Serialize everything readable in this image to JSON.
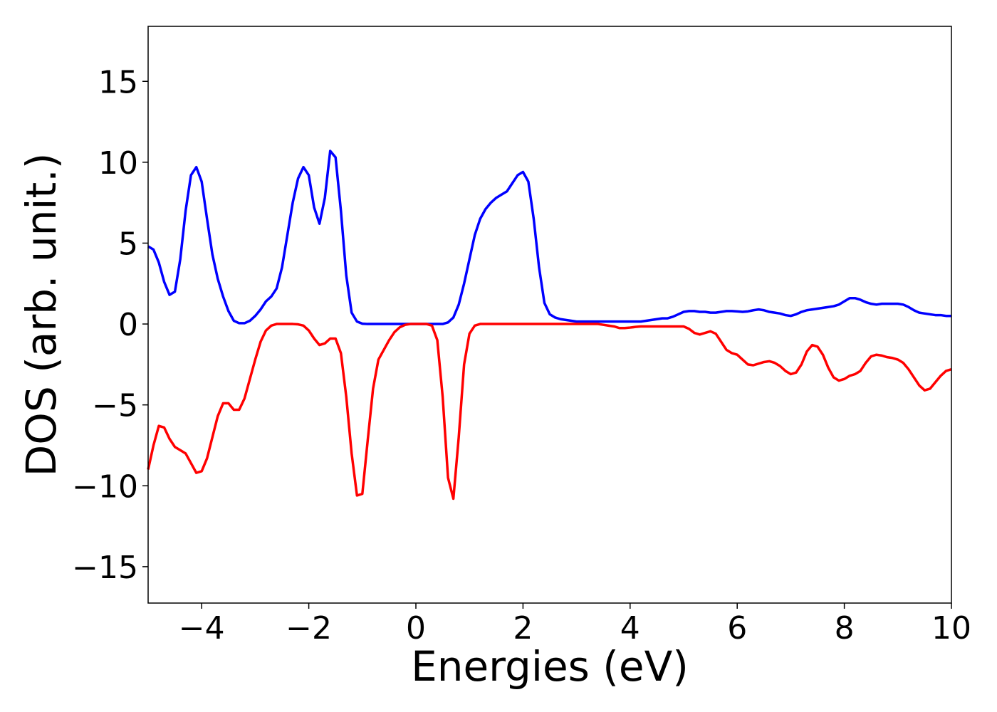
{
  "chart_data": {
    "type": "line",
    "xlabel": "Energies (eV)",
    "ylabel": "DOS (arb. unit.)",
    "xlim": [
      -5,
      10
    ],
    "ylim": [
      -17.25,
      18.4
    ],
    "xticks": [
      {
        "value": -4,
        "label": "−4"
      },
      {
        "value": -2,
        "label": "−2"
      },
      0,
      2,
      4,
      6,
      8,
      10
    ],
    "yticks": [
      {
        "value": -15,
        "label": "−15"
      },
      {
        "value": -10,
        "label": "−10"
      },
      {
        "value": -5,
        "label": "−5"
      },
      0,
      5,
      10,
      15
    ],
    "x": [
      -5.0,
      -4.9,
      -4.8,
      -4.7,
      -4.6,
      -4.5,
      -4.4,
      -4.3,
      -4.2,
      -4.1,
      -4.0,
      -3.9,
      -3.8,
      -3.7,
      -3.6,
      -3.5,
      -3.4,
      -3.3,
      -3.2,
      -3.1,
      -3.0,
      -2.9,
      -2.8,
      -2.7,
      -2.6,
      -2.5,
      -2.4,
      -2.3,
      -2.2,
      -2.1,
      -2.0,
      -1.9,
      -1.8,
      -1.7,
      -1.6,
      -1.5,
      -1.4,
      -1.3,
      -1.2,
      -1.1,
      -1.0,
      -0.9,
      -0.8,
      -0.7,
      -0.6,
      -0.5,
      -0.4,
      -0.3,
      -0.2,
      -0.1,
      0.0,
      0.1,
      0.2,
      0.3,
      0.4,
      0.5,
      0.6,
      0.7,
      0.8,
      0.9,
      1.0,
      1.1,
      1.2,
      1.3,
      1.4,
      1.5,
      1.6,
      1.7,
      1.8,
      1.9,
      2.0,
      2.1,
      2.2,
      2.3,
      2.4,
      2.5,
      2.6,
      2.7,
      2.8,
      2.9,
      3.0,
      3.1,
      3.2,
      3.3,
      3.4,
      3.5,
      3.6,
      3.7,
      3.8,
      3.9,
      4.0,
      4.1,
      4.2,
      4.3,
      4.4,
      4.5,
      4.6,
      4.7,
      4.8,
      4.9,
      5.0,
      5.1,
      5.2,
      5.3,
      5.4,
      5.5,
      5.6,
      5.7,
      5.8,
      5.9,
      6.0,
      6.1,
      6.2,
      6.3,
      6.4,
      6.5,
      6.6,
      6.7,
      6.8,
      6.9,
      7.0,
      7.1,
      7.2,
      7.3,
      7.4,
      7.5,
      7.6,
      7.7,
      7.8,
      7.9,
      8.0,
      8.1,
      8.2,
      8.3,
      8.4,
      8.5,
      8.6,
      8.7,
      8.8,
      8.9,
      9.0,
      9.1,
      9.2,
      9.3,
      9.4,
      9.5,
      9.6,
      9.7,
      9.8,
      9.9,
      10.0
    ],
    "series": [
      {
        "color": "#0000ff",
        "values": [
          4.8,
          4.6,
          3.8,
          2.6,
          1.8,
          2.0,
          4.0,
          7.0,
          9.2,
          9.7,
          8.8,
          6.5,
          4.3,
          2.8,
          1.7,
          0.8,
          0.2,
          0.05,
          0.05,
          0.2,
          0.5,
          0.9,
          1.4,
          1.7,
          2.2,
          3.5,
          5.5,
          7.5,
          9.0,
          9.7,
          9.2,
          7.2,
          6.2,
          7.8,
          10.7,
          10.3,
          7.0,
          3.0,
          0.7,
          0.15,
          0.02,
          0,
          0,
          0,
          0,
          0,
          0,
          0,
          0,
          0,
          0,
          0,
          0,
          0,
          0,
          0,
          0.1,
          0.4,
          1.2,
          2.5,
          4.0,
          5.5,
          6.5,
          7.1,
          7.5,
          7.8,
          8.0,
          8.2,
          8.7,
          9.2,
          9.4,
          8.8,
          6.5,
          3.5,
          1.3,
          0.6,
          0.4,
          0.3,
          0.25,
          0.2,
          0.15,
          0.15,
          0.15,
          0.15,
          0.15,
          0.15,
          0.15,
          0.15,
          0.15,
          0.15,
          0.15,
          0.15,
          0.15,
          0.2,
          0.25,
          0.3,
          0.35,
          0.35,
          0.45,
          0.6,
          0.75,
          0.8,
          0.8,
          0.75,
          0.75,
          0.7,
          0.7,
          0.75,
          0.8,
          0.8,
          0.78,
          0.75,
          0.78,
          0.85,
          0.9,
          0.85,
          0.75,
          0.7,
          0.65,
          0.55,
          0.5,
          0.6,
          0.75,
          0.85,
          0.9,
          0.95,
          1.0,
          1.05,
          1.1,
          1.2,
          1.4,
          1.6,
          1.6,
          1.5,
          1.35,
          1.25,
          1.2,
          1.25,
          1.25,
          1.25,
          1.25,
          1.2,
          1.05,
          0.85,
          0.7,
          0.65,
          0.6,
          0.55,
          0.55,
          0.5,
          0.5
        ]
      },
      {
        "color": "#ff0000",
        "values": [
          -9.0,
          -7.5,
          -6.3,
          -6.4,
          -7.1,
          -7.6,
          -7.8,
          -8.0,
          -8.6,
          -9.2,
          -9.1,
          -8.3,
          -7.0,
          -5.7,
          -4.9,
          -4.9,
          -5.3,
          -5.3,
          -4.6,
          -3.4,
          -2.2,
          -1.1,
          -0.4,
          -0.1,
          0,
          0,
          0,
          0,
          -0.02,
          -0.1,
          -0.4,
          -0.9,
          -1.3,
          -1.2,
          -0.9,
          -0.9,
          -1.8,
          -4.5,
          -8.0,
          -10.6,
          -10.5,
          -7.2,
          -4.0,
          -2.2,
          -1.6,
          -1.0,
          -0.5,
          -0.2,
          -0.05,
          0,
          0,
          0,
          0,
          -0.1,
          -1.0,
          -4.5,
          -9.5,
          -10.8,
          -7.0,
          -2.5,
          -0.6,
          -0.1,
          0,
          0,
          0,
          0,
          0,
          0,
          0,
          0,
          0,
          0,
          0,
          0,
          0,
          0,
          0,
          0,
          0,
          0,
          0,
          0,
          0,
          0,
          0,
          -0.05,
          -0.1,
          -0.15,
          -0.25,
          -0.25,
          -0.22,
          -0.18,
          -0.15,
          -0.15,
          -0.15,
          -0.15,
          -0.15,
          -0.15,
          -0.15,
          -0.15,
          -0.15,
          -0.3,
          -0.55,
          -0.65,
          -0.55,
          -0.45,
          -0.6,
          -1.1,
          -1.6,
          -1.8,
          -1.9,
          -2.2,
          -2.5,
          -2.55,
          -2.45,
          -2.35,
          -2.3,
          -2.4,
          -2.6,
          -2.9,
          -3.1,
          -3.0,
          -2.5,
          -1.7,
          -1.3,
          -1.4,
          -1.9,
          -2.7,
          -3.3,
          -3.5,
          -3.4,
          -3.2,
          -3.1,
          -2.9,
          -2.4,
          -2.0,
          -1.9,
          -1.95,
          -2.05,
          -2.1,
          -2.2,
          -2.4,
          -2.8,
          -3.3,
          -3.8,
          -4.1,
          -4.0,
          -3.6,
          -3.2,
          -2.9,
          -2.8
        ]
      }
    ]
  }
}
